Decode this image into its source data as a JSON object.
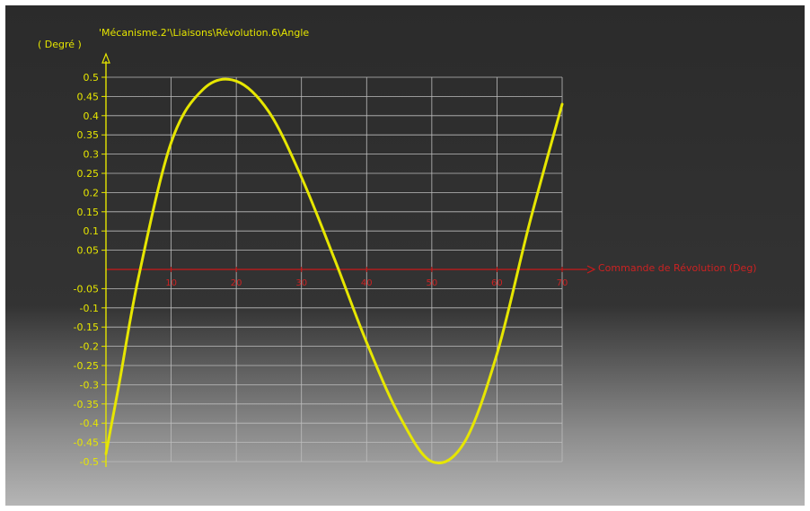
{
  "chart_data": {
    "type": "line",
    "title": "'Mécanisme.2'\\Liaisons\\Révolution.6\\Angle",
    "ylabel": "( Degré )",
    "xlabel": "Commande de Révolution (Deg)",
    "ylim": [
      -0.5,
      0.5
    ],
    "xlim": [
      0,
      70
    ],
    "y_ticks": [
      "0.5",
      "0.45",
      "0.4",
      "0.35",
      "0.3",
      "0.25",
      "0.2",
      "0.15",
      "0.1",
      "0.05",
      "-0.05",
      "-0.1",
      "-0.15",
      "-0.2",
      "-0.25",
      "-0.3",
      "-0.35",
      "-0.4",
      "-0.45",
      "-0.5"
    ],
    "y_tick_values": [
      0.5,
      0.45,
      0.4,
      0.35,
      0.3,
      0.25,
      0.2,
      0.15,
      0.1,
      0.05,
      -0.05,
      -0.1,
      -0.15,
      -0.2,
      -0.25,
      -0.3,
      -0.35,
      -0.4,
      -0.45,
      -0.5
    ],
    "x_ticks": [
      "10",
      "20",
      "30",
      "40",
      "50",
      "60",
      "70"
    ],
    "x_tick_values": [
      10,
      20,
      30,
      40,
      50,
      60,
      70
    ],
    "grid": true,
    "series": [
      {
        "color": "#e6e600",
        "x": [
          0,
          2,
          5,
          10,
          15,
          20,
          25,
          30,
          35,
          40,
          45,
          50,
          55,
          60,
          65,
          70
        ],
        "values": [
          -0.48,
          -0.3,
          -0.02,
          0.33,
          0.47,
          0.49,
          0.41,
          0.24,
          0.03,
          -0.19,
          -0.38,
          -0.5,
          -0.45,
          -0.22,
          0.12,
          0.43
        ]
      }
    ],
    "colors": {
      "axis": "#e6e600",
      "grid": "#bdbdbd",
      "zero_line": "#cc1a1a",
      "x_labels": "#cc2222"
    }
  }
}
